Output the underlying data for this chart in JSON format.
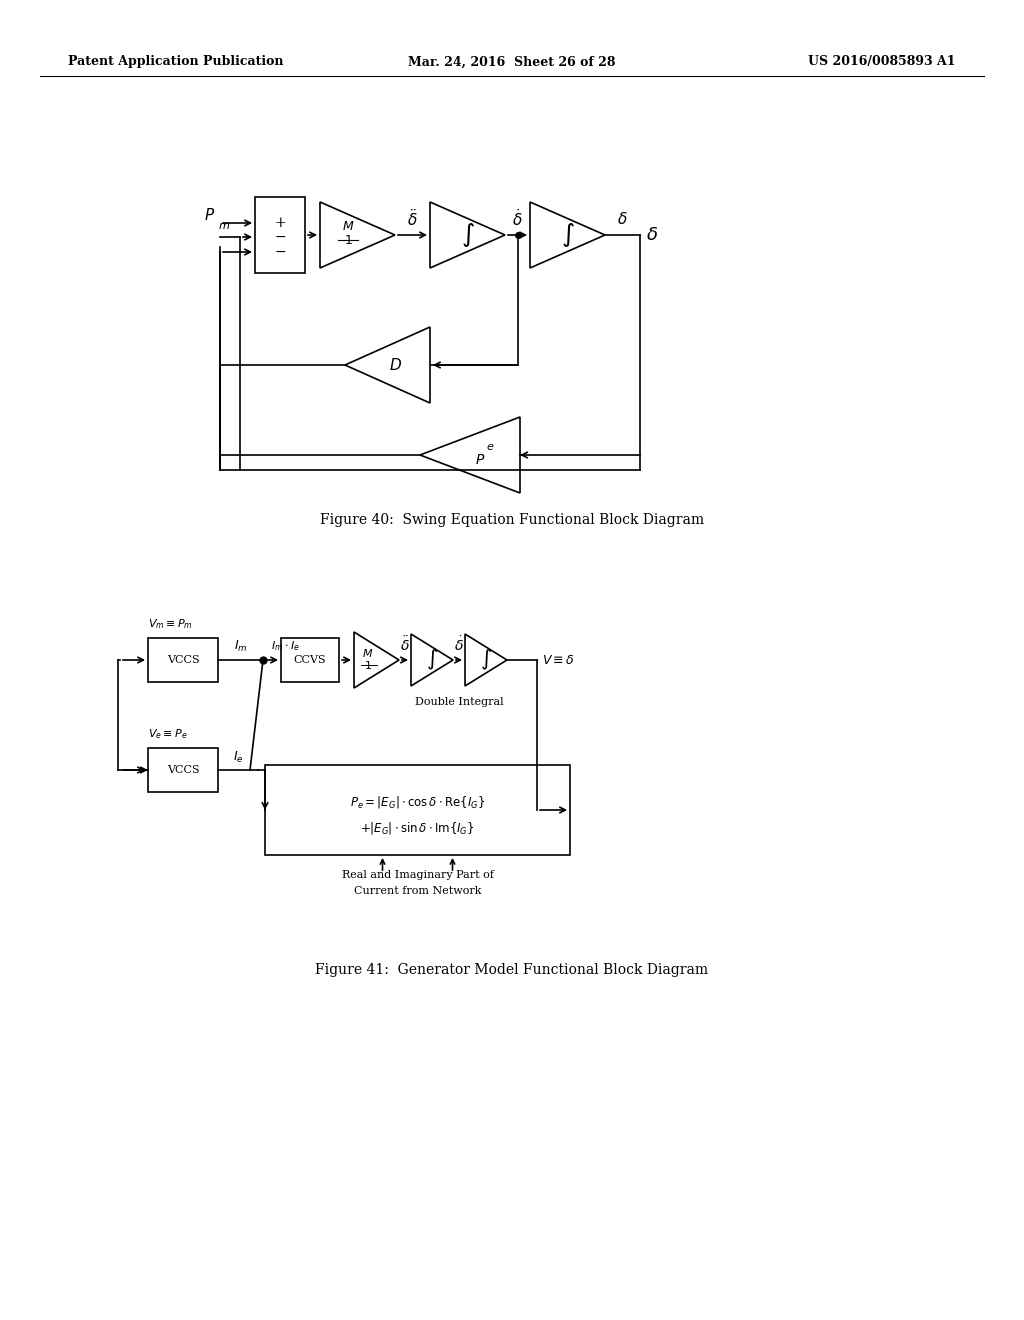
{
  "bg_color": "#ffffff",
  "header_left": "Patent Application Publication",
  "header_mid": "Mar. 24, 2016  Sheet 26 of 28",
  "header_right": "US 2016/0085893 A1",
  "fig40_caption": "Figure 40:  Swing Equation Functional Block Diagram",
  "fig41_caption": "Figure 41:  Generator Model Functional Block Diagram"
}
